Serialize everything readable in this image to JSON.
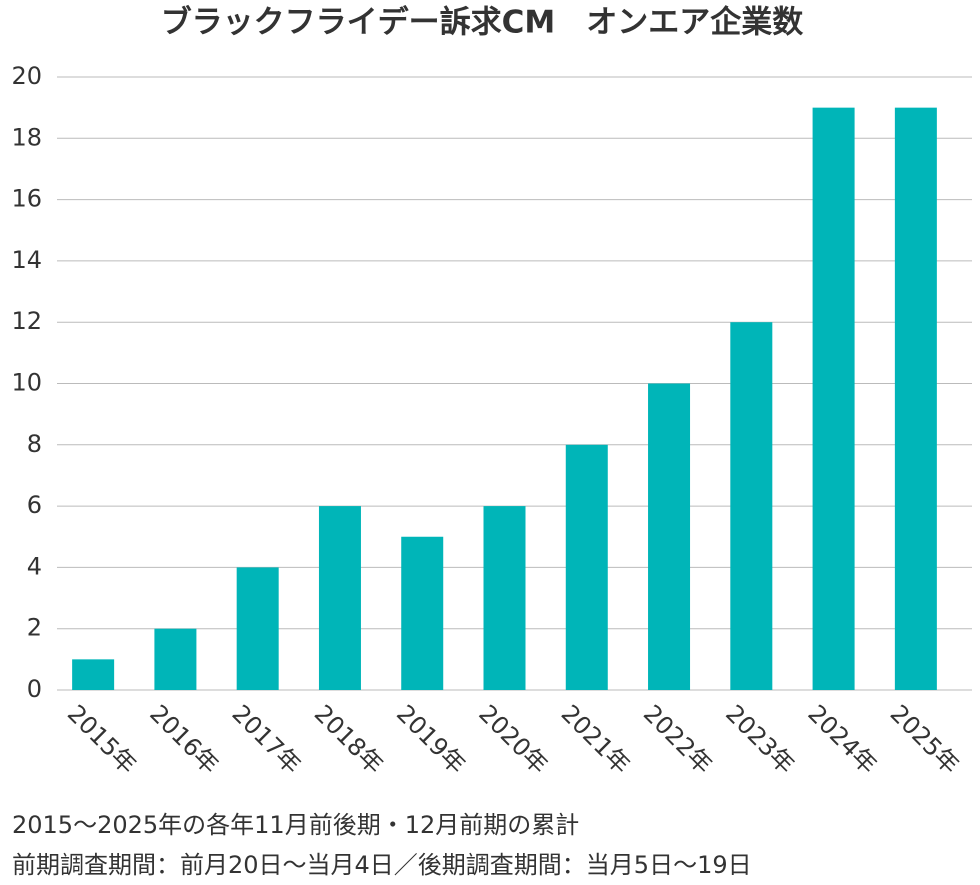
{
  "chart_data": {
    "type": "bar",
    "title": "ブラックフライデー訴求CM　オンエア企業数",
    "categories": [
      "2015年",
      "2016年",
      "2017年",
      "2018年",
      "2019年",
      "2020年",
      "2021年",
      "2022年",
      "2023年",
      "2024年",
      "2025年"
    ],
    "values": [
      1,
      2,
      4,
      6,
      5,
      6,
      8,
      10,
      12,
      19,
      19
    ],
    "color": "#00b5b8",
    "ylim": [
      0,
      20
    ],
    "yticks": [
      0,
      2,
      4,
      6,
      8,
      10,
      12,
      14,
      16,
      18,
      20
    ],
    "grid": true,
    "notes": [
      "2015〜2025年の各年11月前後期・12月前期の累計",
      "前期調査期間：前月20日〜当月4日／後期調査期間：当月5日〜19日"
    ]
  }
}
